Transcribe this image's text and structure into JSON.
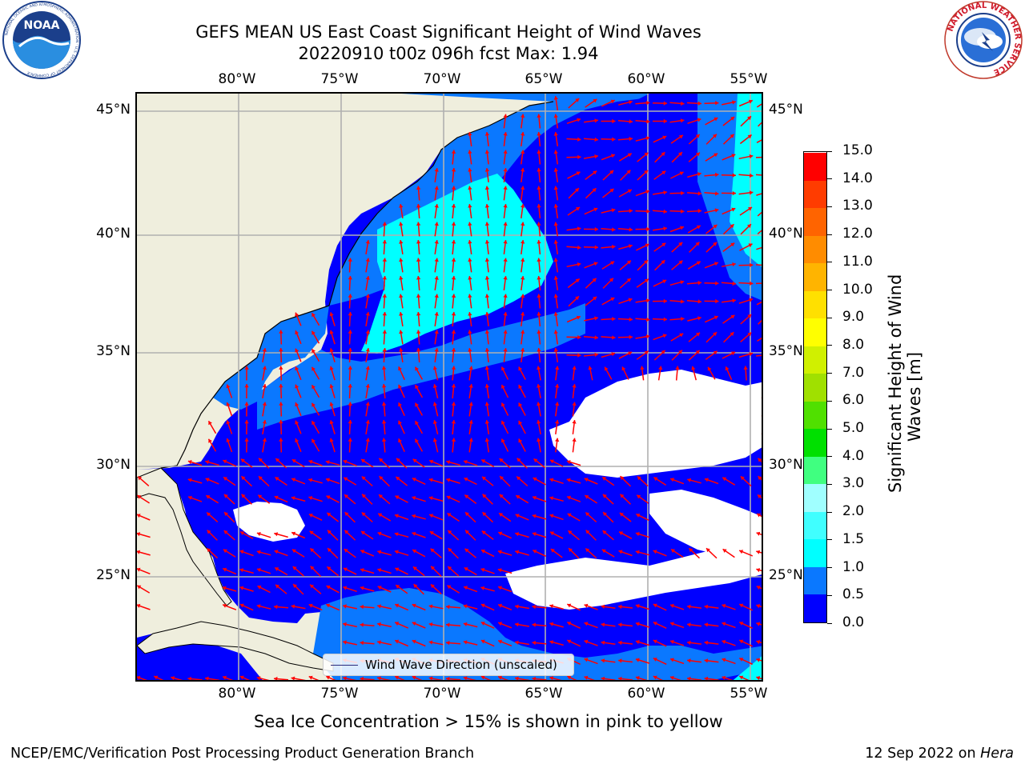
{
  "title": {
    "line1": "GEFS MEAN US East Coast Significant Height of Wind Waves",
    "line2": "20220910 t00z 096h fcst   Max: 1.94"
  },
  "logos": {
    "noaa": "NOAA",
    "noaa_ring": "NATIONAL OCEANIC AND ATMOSPHERIC ADMINISTRATION · U.S. DEPARTMENT OF COMMERCE",
    "nws_ring": "NATIONAL WEATHER SERVICE"
  },
  "axes": {
    "lon_ticks": [
      "80°W",
      "75°W",
      "70°W",
      "65°W",
      "60°W",
      "55°W"
    ],
    "lat_ticks_left": [
      "45°N",
      "40°N",
      "35°N",
      "30°N",
      "25°N"
    ],
    "lat_ticks_right": [
      "45°N",
      "40°N",
      "35°N",
      "30°N",
      "25°N"
    ],
    "lon_range": [
      -85,
      -54.3
    ],
    "lat_range": [
      20.5,
      45.8
    ],
    "grid": true
  },
  "colorbar": {
    "title_line1": "Significant Height of Wind",
    "title_line2": "Waves [m]",
    "levels": [
      "0.0",
      "0.5",
      "1.0",
      "1.5",
      "2.0",
      "3.0",
      "4.0",
      "5.0",
      "6.0",
      "7.0",
      "8.0",
      "9.0",
      "10.0",
      "11.0",
      "12.0",
      "13.0",
      "14.0",
      "15.0"
    ],
    "colors": [
      "#0000ff",
      "#0a78ff",
      "#00ffff",
      "#40ffff",
      "#a0ffff",
      "#40ff80",
      "#00e000",
      "#50e000",
      "#a0e000",
      "#d0f000",
      "#ffff00",
      "#ffe000",
      "#ffb400",
      "#ff8c00",
      "#ff6400",
      "#ff3c00",
      "#ff0000"
    ]
  },
  "map": {
    "land_color": "#efeedd",
    "ocean_colors": {
      "band_0_05": "#0000ff",
      "band_05_1": "#0a78ff",
      "band_1_15": "#00ffff",
      "band_15_2": "#40ffff"
    },
    "arrow_color": "#ff0000"
  },
  "legend": {
    "label": "Wind Wave Direction (unscaled)"
  },
  "note": "Sea Ice Concentration > 15% is shown in pink to yellow",
  "footer": {
    "left": "NCEP/EMC/Verification Post Processing Product Generation Branch",
    "right_date": "12 Sep 2022 on ",
    "right_machine": "Hera"
  }
}
